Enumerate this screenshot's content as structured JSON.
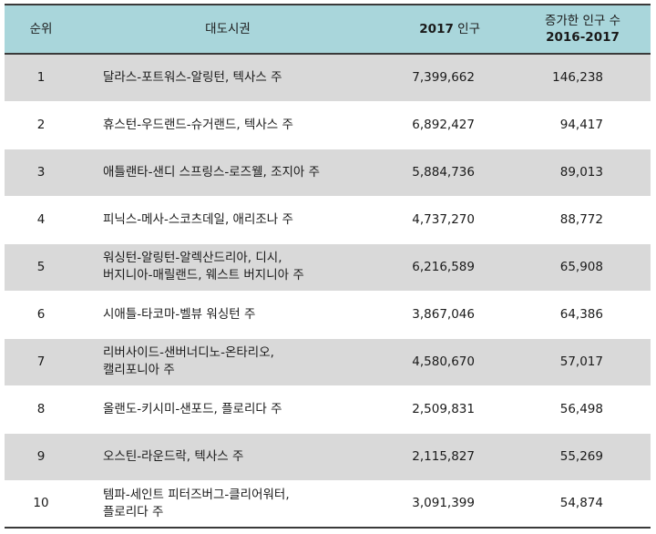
{
  "table": {
    "headers": {
      "rank": "순위",
      "metro": "대도시권",
      "pop_year": "2017",
      "pop_label": " 인구",
      "increase_label": "증가한 인구 수",
      "increase_years": "2016-2017"
    },
    "rows": [
      {
        "rank": "1",
        "metro": "달라스-포트워스-알링턴, 텍사스 주",
        "population": "7,399,662",
        "increase": "146,238"
      },
      {
        "rank": "2",
        "metro": "휴스턴-우드랜드-슈거랜드, 텍사스 주",
        "population": "6,892,427",
        "increase": "94,417"
      },
      {
        "rank": "3",
        "metro": "애틀랜타-샌디 스프링스-로즈웰, 조지아 주",
        "population": "5,884,736",
        "increase": "89,013"
      },
      {
        "rank": "4",
        "metro": "피닉스-메사-스코츠데일, 애리조나 주",
        "population": "4,737,270",
        "increase": "88,772"
      },
      {
        "rank": "5",
        "metro": "워싱턴-알링턴-알렉산드리아, 디시,\n버지니아-매릴랜드, 웨스트 버지니아 주",
        "population": "6,216,589",
        "increase": "65,908"
      },
      {
        "rank": "6",
        "metro": "시애틀-타코마-벨뷰 워싱턴 주",
        "population": "3,867,046",
        "increase": "64,386"
      },
      {
        "rank": "7",
        "metro": "리버사이드-샌버너디노-온타리오,\n캘리포니아 주",
        "population": "4,580,670",
        "increase": "57,017"
      },
      {
        "rank": "8",
        "metro": "올랜도-키시미-샌포드, 플로리다 주",
        "population": "2,509,831",
        "increase": "56,498"
      },
      {
        "rank": "9",
        "metro": "오스틴-라운드락, 텍사스 주",
        "population": "2,115,827",
        "increase": "55,269"
      },
      {
        "rank": "10",
        "metro": "템파-세인트 피터즈버그-클리어워터,\n플로리다 주",
        "population": "3,091,399",
        "increase": "54,874"
      }
    ]
  }
}
